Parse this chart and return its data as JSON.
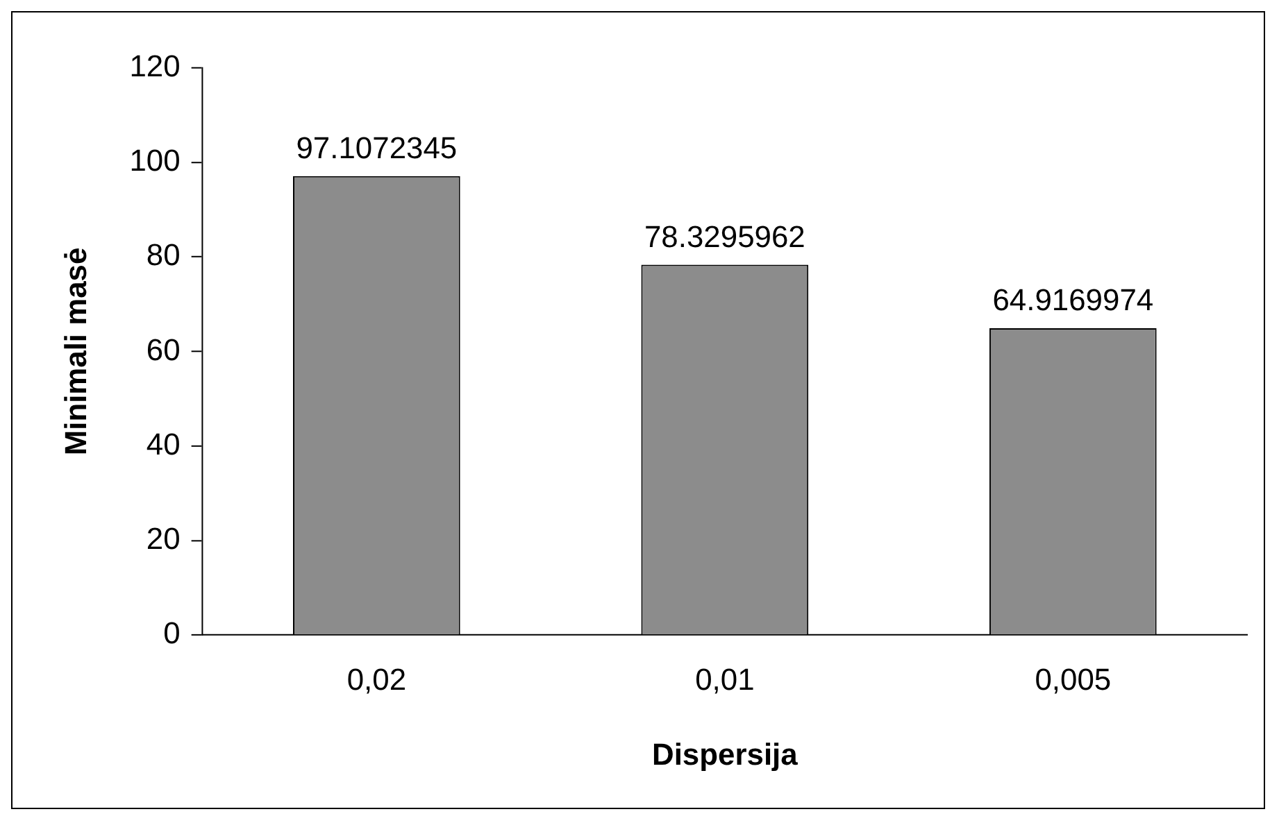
{
  "chart_data": {
    "type": "bar",
    "xlabel": "Dispersija",
    "ylabel": "Minimali masė",
    "categories": [
      "0,02",
      "0,01",
      "0,005"
    ],
    "values": [
      97.1072345,
      78.3295962,
      64.9169974
    ],
    "color": "#8c8c8c",
    "ylim": [
      0,
      120
    ],
    "yticks": [
      0,
      20,
      40,
      60,
      80,
      100,
      120
    ],
    "grid": false,
    "legend": false,
    "data_labels": true
  }
}
